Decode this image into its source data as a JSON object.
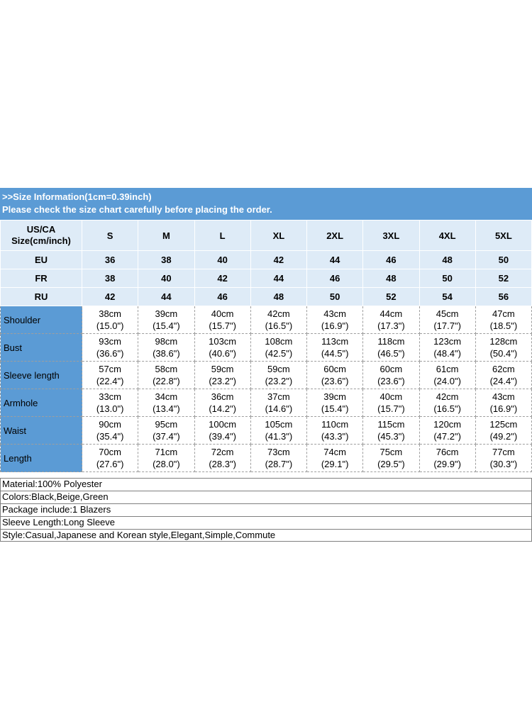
{
  "banner": {
    "line1": ">>Size Information(1cm=0.39inch)",
    "line2": "Please check the size chart carefully before placing the order."
  },
  "table": {
    "corner": "US/CA\nSize(cm/inch)",
    "sizes": [
      "S",
      "M",
      "L",
      "XL",
      "2XL",
      "3XL",
      "4XL",
      "5XL"
    ],
    "region_rows": [
      {
        "label": "EU",
        "values": [
          "36",
          "38",
          "40",
          "42",
          "44",
          "46",
          "48",
          "50"
        ]
      },
      {
        "label": "FR",
        "values": [
          "38",
          "40",
          "42",
          "44",
          "46",
          "48",
          "50",
          "52"
        ]
      },
      {
        "label": "RU",
        "values": [
          "42",
          "44",
          "46",
          "48",
          "50",
          "52",
          "54",
          "56"
        ]
      }
    ],
    "measure_rows": [
      {
        "label": "Shoulder",
        "values": [
          [
            "38cm",
            "(15.0\")"
          ],
          [
            "39cm",
            "(15.4\")"
          ],
          [
            "40cm",
            "(15.7\")"
          ],
          [
            "42cm",
            "(16.5\")"
          ],
          [
            "43cm",
            "(16.9\")"
          ],
          [
            "44cm",
            "(17.3\")"
          ],
          [
            "45cm",
            "(17.7\")"
          ],
          [
            "47cm",
            "(18.5\")"
          ]
        ]
      },
      {
        "label": "Bust",
        "values": [
          [
            "93cm",
            "(36.6\")"
          ],
          [
            "98cm",
            "(38.6\")"
          ],
          [
            "103cm",
            "(40.6\")"
          ],
          [
            "108cm",
            "(42.5\")"
          ],
          [
            "113cm",
            "(44.5\")"
          ],
          [
            "118cm",
            "(46.5\")"
          ],
          [
            "123cm",
            "(48.4\")"
          ],
          [
            "128cm",
            "(50.4\")"
          ]
        ]
      },
      {
        "label": "Sleeve length",
        "values": [
          [
            "57cm",
            "(22.4\")"
          ],
          [
            "58cm",
            "(22.8\")"
          ],
          [
            "59cm",
            "(23.2\")"
          ],
          [
            "59cm",
            "(23.2\")"
          ],
          [
            "60cm",
            "(23.6\")"
          ],
          [
            "60cm",
            "(23.6\")"
          ],
          [
            "61cm",
            "(24.0\")"
          ],
          [
            "62cm",
            "(24.4\")"
          ]
        ]
      },
      {
        "label": "Armhole",
        "values": [
          [
            "33cm",
            "(13.0\")"
          ],
          [
            "34cm",
            "(13.4\")"
          ],
          [
            "36cm",
            "(14.2\")"
          ],
          [
            "37cm",
            "(14.6\")"
          ],
          [
            "39cm",
            "(15.4\")"
          ],
          [
            "40cm",
            "(15.7\")"
          ],
          [
            "42cm",
            "(16.5\")"
          ],
          [
            "43cm",
            "(16.9\")"
          ]
        ]
      },
      {
        "label": "Waist",
        "values": [
          [
            "90cm",
            "(35.4\")"
          ],
          [
            "95cm",
            "(37.4\")"
          ],
          [
            "100cm",
            "(39.4\")"
          ],
          [
            "105cm",
            "(41.3\")"
          ],
          [
            "110cm",
            "(43.3\")"
          ],
          [
            "115cm",
            "(45.3\")"
          ],
          [
            "120cm",
            "(47.2\")"
          ],
          [
            "125cm",
            "(49.2\")"
          ]
        ]
      },
      {
        "label": "Length",
        "values": [
          [
            "70cm",
            "(27.6\")"
          ],
          [
            "71cm",
            "(28.0\")"
          ],
          [
            "72cm",
            "(28.3\")"
          ],
          [
            "73cm",
            "(28.7\")"
          ],
          [
            "74cm",
            "(29.1\")"
          ],
          [
            "75cm",
            "(29.5\")"
          ],
          [
            "76cm",
            "(29.9\")"
          ],
          [
            "77cm",
            "(30.3\")"
          ]
        ]
      }
    ]
  },
  "details": [
    "Material:100% Polyester",
    "Colors:Black,Beige,Green",
    "Package include:1 Blazers",
    "Sleeve Length:Long Sleeve",
    "Style:Casual,Japanese and Korean style,Elegant,Simple,Commute"
  ],
  "colors": {
    "banner_blue": "#5b9bd5",
    "light_blue_row": "#deebf7",
    "label_column_blue": "#5b9bd5"
  }
}
